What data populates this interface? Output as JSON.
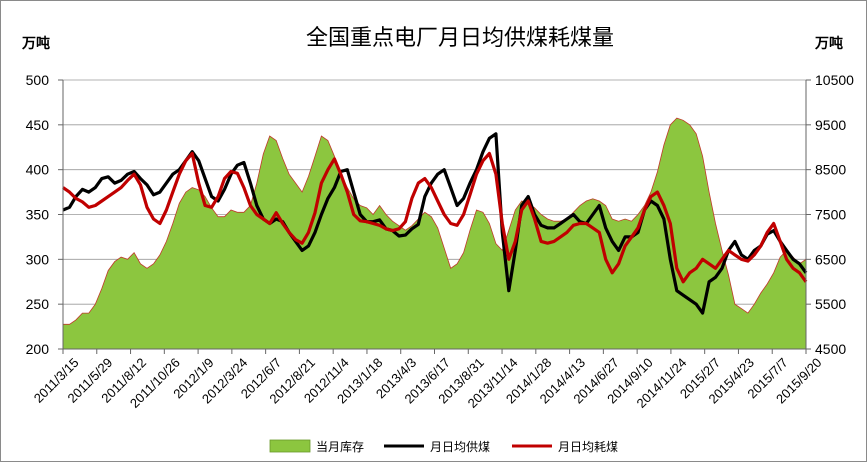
{
  "chart_data": {
    "type": "line",
    "title": "全国重点电厂月日均供煤耗煤量",
    "left_unit": "万吨",
    "right_unit": "万吨",
    "left_axis": {
      "min": 200,
      "max": 500,
      "step": 50,
      "ticks": [
        "500",
        "450",
        "400",
        "350",
        "300",
        "250",
        "200"
      ]
    },
    "right_axis": {
      "min": 4500,
      "max": 10500,
      "step": 1000,
      "ticks": [
        "10500",
        "9500",
        "8500",
        "7500",
        "6500",
        "5500",
        "4500"
      ]
    },
    "x_ticks": [
      "2011/3/15",
      "2011/5/29",
      "2011/8/12",
      "2011/10/26",
      "2012/1/9",
      "2012/3/24",
      "2012/6/7",
      "2012/8/21",
      "2012/11/4",
      "2013/1/18",
      "2013/4/3",
      "2013/6/17",
      "2013/8/31",
      "2013/11/14",
      "2014/1/28",
      "2014/4/13",
      "2014/6/27",
      "2014/9/10",
      "2014/11/24",
      "2015/2/7",
      "2015/4/23",
      "2015/7/7",
      "2015/9/20"
    ],
    "grid": true,
    "legend_position": "bottom",
    "series": [
      {
        "name": "当月库存",
        "type": "area",
        "axis": "right",
        "color": "#8CC63F",
        "values": [
          5050,
          5050,
          5150,
          5300,
          5300,
          5500,
          5850,
          6250,
          6450,
          6550,
          6500,
          6650,
          6400,
          6300,
          6400,
          6600,
          6900,
          7300,
          7750,
          8000,
          8100,
          8050,
          7900,
          7650,
          7450,
          7450,
          7600,
          7550,
          7550,
          7700,
          8200,
          8850,
          9250,
          9150,
          8750,
          8400,
          8200,
          8000,
          8350,
          8800,
          9250,
          9150,
          8800,
          8400,
          8100,
          7850,
          7700,
          7650,
          7500,
          7700,
          7500,
          7350,
          7250,
          7150,
          7250,
          7400,
          7550,
          7450,
          7200,
          6750,
          6300,
          6400,
          6650,
          7150,
          7600,
          7550,
          7300,
          6850,
          6700,
          7150,
          7600,
          7800,
          7750,
          7650,
          7500,
          7400,
          7350,
          7350,
          7400,
          7550,
          7700,
          7800,
          7850,
          7800,
          7700,
          7400,
          7350,
          7400,
          7350,
          7500,
          7700,
          8000,
          8450,
          9050,
          9500,
          9650,
          9600,
          9500,
          9300,
          8800,
          8000,
          7300,
          6700,
          6150,
          5500,
          5400,
          5300,
          5500,
          5750,
          5950,
          6200,
          6550,
          6700,
          6550,
          6400,
          6500
        ]
      },
      {
        "name": "月日均供煤",
        "type": "line",
        "axis": "left",
        "color": "#000000",
        "values": [
          355,
          358,
          370,
          378,
          375,
          380,
          390,
          392,
          385,
          388,
          395,
          398,
          390,
          383,
          372,
          375,
          385,
          395,
          400,
          410,
          420,
          410,
          390,
          370,
          365,
          378,
          395,
          405,
          408,
          385,
          360,
          345,
          340,
          345,
          342,
          330,
          320,
          310,
          315,
          330,
          350,
          368,
          380,
          398,
          400,
          375,
          350,
          342,
          342,
          344,
          334,
          332,
          326,
          327,
          334,
          339,
          370,
          385,
          395,
          400,
          380,
          360,
          368,
          385,
          400,
          420,
          435,
          440,
          330,
          265,
          310,
          360,
          370,
          350,
          338,
          335,
          335,
          340,
          345,
          350,
          342,
          340,
          350,
          360,
          335,
          320,
          310,
          325,
          325,
          330,
          355,
          365,
          360,
          345,
          300,
          265,
          260,
          255,
          250,
          240,
          275,
          280,
          290,
          310,
          320,
          305,
          300,
          310,
          315,
          328,
          332,
          320,
          310,
          300,
          295,
          285
        ]
      },
      {
        "name": "月日均耗煤",
        "type": "line",
        "axis": "left",
        "color": "#C00000",
        "values": [
          380,
          375,
          368,
          364,
          358,
          360,
          365,
          370,
          375,
          380,
          388,
          395,
          383,
          358,
          345,
          340,
          355,
          375,
          395,
          410,
          418,
          385,
          360,
          358,
          370,
          390,
          398,
          396,
          380,
          360,
          350,
          345,
          340,
          352,
          340,
          330,
          322,
          318,
          330,
          352,
          385,
          400,
          412,
          395,
          375,
          350,
          343,
          342,
          340,
          338,
          334,
          332,
          334,
          342,
          368,
          385,
          390,
          380,
          365,
          350,
          340,
          338,
          350,
          372,
          395,
          410,
          418,
          395,
          340,
          300,
          320,
          355,
          365,
          345,
          320,
          318,
          320,
          325,
          330,
          338,
          340,
          340,
          335,
          330,
          300,
          285,
          295,
          315,
          325,
          335,
          355,
          370,
          375,
          360,
          340,
          290,
          275,
          285,
          290,
          300,
          295,
          290,
          300,
          310,
          305,
          300,
          298,
          305,
          315,
          330,
          340,
          320,
          300,
          290,
          285,
          275
        ]
      }
    ]
  },
  "legend": {
    "items": [
      {
        "label": "当月库存"
      },
      {
        "label": "月日均供煤"
      },
      {
        "label": "月日均耗煤"
      }
    ]
  }
}
